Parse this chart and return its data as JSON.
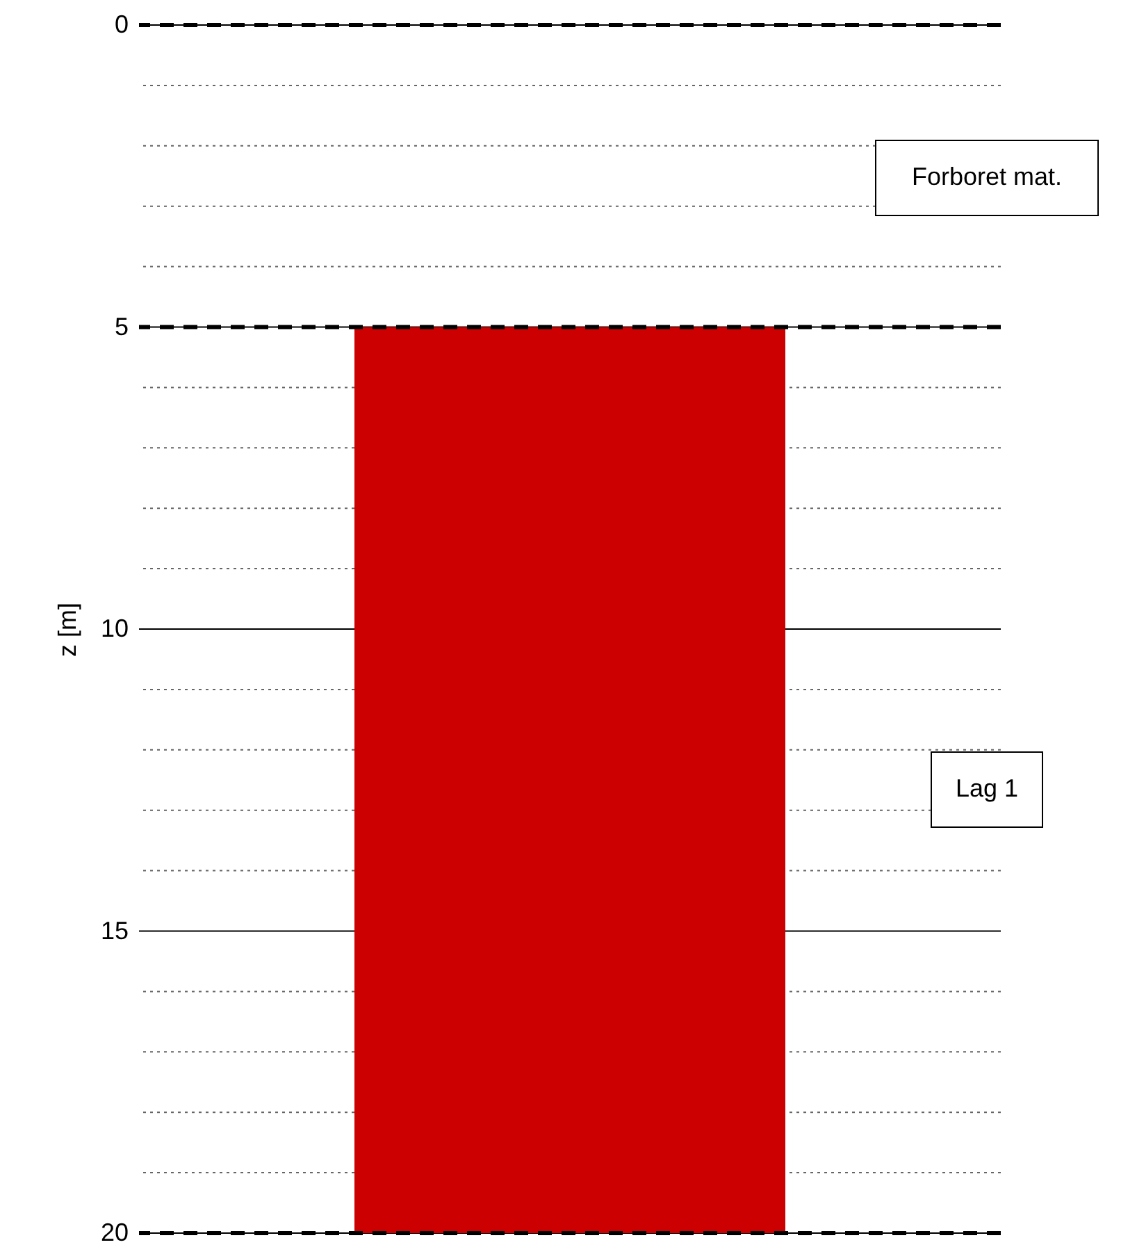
{
  "chart_data": {
    "type": "bar",
    "categories": [
      null
    ],
    "values": [
      15
    ],
    "base": [
      5
    ],
    "color": "#cc0000",
    "ylabel": "z [m]",
    "ylim": [
      20,
      0
    ],
    "yticks": [
      0,
      {
        "value": 1,
        "label": null
      },
      {
        "value": 2,
        "label": null
      },
      {
        "value": 3,
        "label": null
      },
      {
        "value": 4,
        "label": null
      },
      5,
      {
        "value": 6,
        "label": null
      },
      {
        "value": 7,
        "label": null
      },
      {
        "value": 8,
        "label": null
      },
      {
        "value": 9,
        "label": null
      },
      10,
      {
        "value": 11,
        "label": null
      },
      {
        "value": 12,
        "label": null
      },
      {
        "value": 13,
        "label": null
      },
      {
        "value": 14,
        "label": null
      },
      15,
      {
        "value": 16,
        "label": null
      },
      {
        "value": 17,
        "label": null
      },
      {
        "value": 18,
        "label": null
      },
      {
        "value": 19,
        "label": null
      },
      20
    ],
    "grid": true,
    "ref_lines": [
      {
        "axis": "y",
        "value": 0,
        "line_style": "dashed"
      },
      {
        "axis": "y",
        "value": 5,
        "line_style": "dashed"
      },
      {
        "axis": "y",
        "value": 20,
        "line_style": "dashed"
      }
    ],
    "annotations": [
      "Forboret mat.",
      "Lag 1"
    ]
  }
}
